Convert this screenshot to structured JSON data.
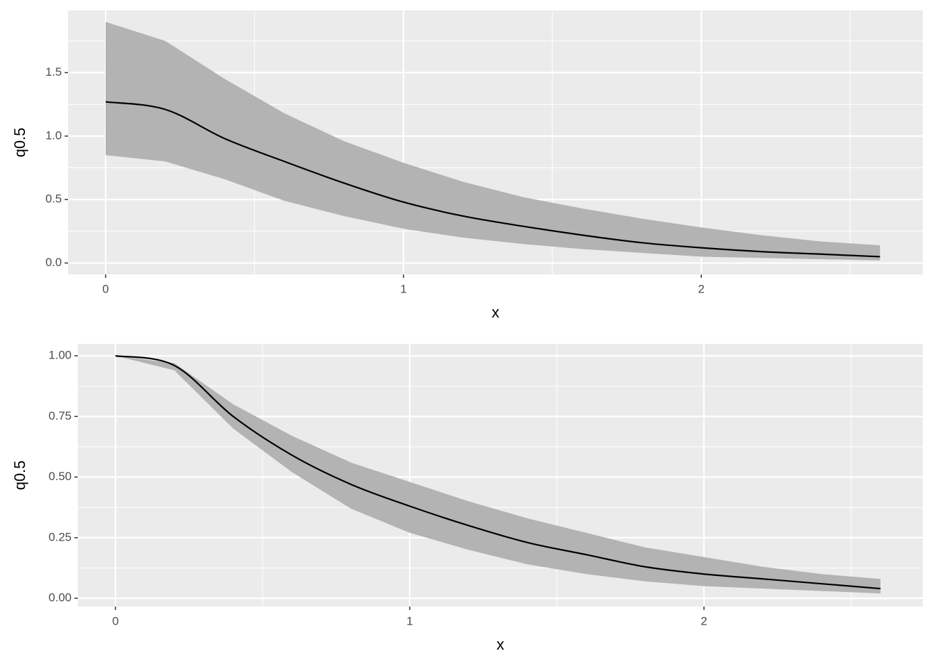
{
  "chart_data": [
    {
      "type": "line",
      "xlabel": "x",
      "ylabel": "q0.5",
      "x": [
        0,
        0.2,
        0.4,
        0.6,
        0.8,
        1.0,
        1.2,
        1.4,
        1.6,
        1.8,
        2.0,
        2.2,
        2.4,
        2.6
      ],
      "values": [
        1.27,
        1.21,
        0.98,
        0.8,
        0.63,
        0.48,
        0.37,
        0.29,
        0.22,
        0.16,
        0.12,
        0.09,
        0.07,
        0.05
      ],
      "lower": [
        0.85,
        0.8,
        0.66,
        0.49,
        0.37,
        0.27,
        0.2,
        0.15,
        0.11,
        0.08,
        0.05,
        0.04,
        0.03,
        0.02
      ],
      "upper": [
        1.9,
        1.75,
        1.45,
        1.18,
        0.96,
        0.79,
        0.64,
        0.52,
        0.43,
        0.35,
        0.28,
        0.22,
        0.17,
        0.14
      ],
      "color": "#000000",
      "band_color": "#b3b3b3",
      "xlim": [
        -0.126,
        2.744
      ],
      "xticks": [
        0,
        1,
        2
      ],
      "ylim": [
        -0.09,
        1.99
      ],
      "yticks": [
        {
          "value": 0,
          "label": "0.0"
        },
        {
          "value": 0.5,
          "label": "0.5"
        },
        {
          "value": 1,
          "label": "1.0"
        },
        {
          "value": 1.5,
          "label": "1.5"
        }
      ],
      "grid": true
    },
    {
      "type": "line",
      "xlabel": "x",
      "ylabel": "q0.5",
      "x": [
        0,
        0.2,
        0.4,
        0.6,
        0.8,
        1.0,
        1.2,
        1.4,
        1.6,
        1.8,
        2.0,
        2.2,
        2.4,
        2.6
      ],
      "values": [
        1.0,
        0.96,
        0.75,
        0.59,
        0.47,
        0.38,
        0.3,
        0.23,
        0.18,
        0.13,
        0.1,
        0.08,
        0.06,
        0.04
      ],
      "lower": [
        1.0,
        0.94,
        0.7,
        0.52,
        0.37,
        0.27,
        0.2,
        0.14,
        0.1,
        0.07,
        0.05,
        0.04,
        0.03,
        0.02
      ],
      "upper": [
        1.0,
        0.97,
        0.8,
        0.67,
        0.56,
        0.48,
        0.4,
        0.33,
        0.27,
        0.21,
        0.17,
        0.13,
        0.1,
        0.08
      ],
      "color": "#000000",
      "band_color": "#b3b3b3",
      "xlim": [
        -0.128,
        2.744
      ],
      "xticks": [
        0,
        1,
        2
      ],
      "ylim": [
        -0.034,
        1.049
      ],
      "yticks": [
        {
          "value": 0,
          "label": "0.00"
        },
        {
          "value": 0.25,
          "label": "0.25"
        },
        {
          "value": 0.5,
          "label": "0.50"
        },
        {
          "value": 0.75,
          "label": "0.75"
        },
        {
          "value": 1,
          "label": "1.00"
        }
      ],
      "grid": true
    }
  ]
}
